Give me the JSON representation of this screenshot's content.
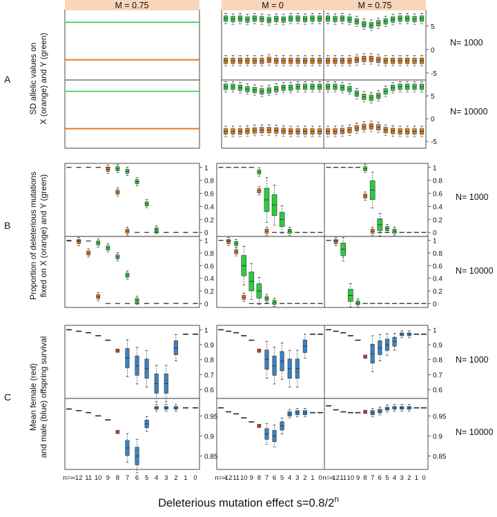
{
  "figure": {
    "x_axis_title": "Deleterious mutation effect s=0.8/2",
    "x_axis_title_sup": "n",
    "x_tick_labels": [
      "n=∞",
      "12",
      "11",
      "10",
      "9",
      "8",
      "7",
      "6",
      "5",
      "4",
      "3",
      "2",
      "1",
      "0"
    ]
  },
  "columns": {
    "left": "M = 0.75",
    "middle": "M = 0",
    "right": "M = 0.75"
  },
  "rows": [
    {
      "letter": "A",
      "ylabel_line1": "SD allelic values on",
      "ylabel_line2": "X (orange) and Y (green)"
    },
    {
      "letter": "B",
      "ylabel_line1": "Proportion of deleterious mutations",
      "ylabel_line2": "fixed on X (orange) and Y (green)"
    },
    {
      "letter": "C",
      "ylabel_line1": "Mean female (red)",
      "ylabel_line2": "and male (blue) offspring survival"
    }
  ],
  "n_labels": {
    "top": "N= 1000",
    "bottom": "N= 10000"
  },
  "colors": {
    "orange": "#e07b1a",
    "green": "#2ecc40",
    "red": "#c0392b",
    "blue": "#3b82c4",
    "strip": "#f9d5b9"
  },
  "chart_data": [
    {
      "type": "box",
      "panel": "A",
      "ylabel": "SD allelic values on X (orange) and Y (green)",
      "yticks_top": [
        5,
        0,
        -5
      ],
      "yticks_bottom": [
        5,
        0,
        -5
      ],
      "left_lines": {
        "N1000": {
          "green": 5.8,
          "orange": -2.2
        },
        "N10000": {
          "green": 6.0,
          "orange": -2.2
        }
      },
      "series": [
        {
          "name": "Y (green)",
          "col": "M = 0",
          "N": 1000,
          "values": [
            6.6,
            6.5,
            6.6,
            6.4,
            6.6,
            6.5,
            6.3,
            6.5,
            6.4,
            6.6,
            6.6,
            6.5,
            6.6,
            6.6
          ]
        },
        {
          "name": "X (orange)",
          "col": "M = 0",
          "N": 1000,
          "values": [
            -2.4,
            -2.4,
            -2.4,
            -2.4,
            -2.4,
            -2.4,
            -2.2,
            -2.4,
            -2.4,
            -2.4,
            -2.4,
            -2.4,
            -2.4,
            -2.4
          ]
        },
        {
          "name": "Y (green)",
          "col": "M = 0.75",
          "N": 1000,
          "values": [
            6.6,
            6.5,
            6.6,
            6.4,
            6.0,
            5.4,
            5.2,
            5.6,
            6.0,
            6.4,
            6.6,
            6.6,
            6.5,
            6.6
          ]
        },
        {
          "name": "X (orange)",
          "col": "M = 0.75",
          "N": 1000,
          "values": [
            -2.4,
            -2.4,
            -2.4,
            -2.4,
            -2.2,
            -2.0,
            -2.0,
            -2.2,
            -2.4,
            -2.4,
            -2.4,
            -2.4,
            -2.4,
            -2.4
          ]
        },
        {
          "name": "Y (green)",
          "col": "M = 0",
          "N": 10000,
          "values": [
            7.0,
            7.0,
            6.8,
            6.5,
            6.3,
            6.0,
            6.2,
            6.5,
            6.8,
            6.8,
            7.0,
            7.0,
            7.0,
            7.0
          ]
        },
        {
          "name": "X (orange)",
          "col": "M = 0",
          "N": 10000,
          "values": [
            -2.8,
            -2.8,
            -2.8,
            -2.7,
            -2.6,
            -2.5,
            -2.5,
            -2.6,
            -2.7,
            -2.8,
            -2.8,
            -2.8,
            -2.8,
            -2.8
          ]
        },
        {
          "name": "Y (green)",
          "col": "M = 0.75",
          "N": 10000,
          "values": [
            7.0,
            7.0,
            6.8,
            6.5,
            5.5,
            4.8,
            4.6,
            5.0,
            6.0,
            6.8,
            7.0,
            7.0,
            7.0,
            7.0
          ]
        },
        {
          "name": "X (orange)",
          "col": "M = 0.75",
          "N": 10000,
          "values": [
            -2.8,
            -2.8,
            -2.7,
            -2.5,
            -2.1,
            -1.8,
            -1.7,
            -1.9,
            -2.5,
            -2.7,
            -2.8,
            -2.8,
            -2.8,
            -2.8
          ]
        }
      ]
    },
    {
      "type": "box",
      "panel": "B",
      "ylabel": "Proportion of deleterious mutations fixed on X (orange) and Y (green)",
      "yticks": [
        1.0,
        0.8,
        0.6,
        0.4,
        0.2,
        0.0
      ],
      "series": [
        {
          "name": "X (orange)",
          "col": "left M = 0.75",
          "N": 1000,
          "values": [
            1.0,
            1.0,
            1.0,
            1.0,
            0.97,
            0.62,
            0.02,
            0.0,
            0.0,
            0.0,
            0.0,
            0.0,
            0.0,
            0.0
          ]
        },
        {
          "name": "Y (green)",
          "col": "left M = 0.75",
          "N": 1000,
          "values": [
            1.0,
            1.0,
            1.0,
            1.0,
            1.0,
            0.98,
            0.94,
            0.78,
            0.44,
            0.04,
            0.0,
            0.0,
            0.0,
            0.0
          ]
        },
        {
          "name": "X (orange)",
          "col": "left M = 0.75",
          "N": 10000,
          "values": [
            0.99,
            0.98,
            0.8,
            0.11,
            0.0,
            0.0,
            0.0,
            0.0,
            0.0,
            0.0,
            0.0,
            0.0,
            0.0,
            0.0
          ]
        },
        {
          "name": "Y (green)",
          "col": "left M = 0.75",
          "N": 10000,
          "values": [
            1.0,
            1.0,
            0.99,
            0.96,
            0.88,
            0.74,
            0.45,
            0.05,
            0.0,
            0.0,
            0.0,
            0.0,
            0.0,
            0.0
          ]
        },
        {
          "name": "X (orange)",
          "col": "M = 0",
          "N": 1000,
          "values": [
            1.0,
            1.0,
            1.0,
            1.0,
            1.0,
            0.64,
            0.02,
            0.0,
            0.0,
            0.0,
            0.0,
            0.0,
            0.0,
            0.0
          ]
        },
        {
          "name": "Y (green)",
          "col": "M = 0",
          "N": 1000,
          "values": [
            1.0,
            1.0,
            1.0,
            1.0,
            1.0,
            0.93,
            0.5,
            0.42,
            0.2,
            0.02,
            0.0,
            0.0,
            0.0,
            0.0
          ]
        },
        {
          "name": "X (orange)",
          "col": "M = 0",
          "N": 10000,
          "values": [
            1.0,
            0.98,
            0.82,
            0.1,
            0.0,
            0.0,
            0.0,
            0.0,
            0.0,
            0.0,
            0.0,
            0.0,
            0.0,
            0.0
          ]
        },
        {
          "name": "Y (green)",
          "col": "M = 0",
          "N": 10000,
          "values": [
            1.0,
            1.0,
            0.95,
            0.6,
            0.35,
            0.2,
            0.08,
            0.02,
            0.0,
            0.0,
            0.0,
            0.0,
            0.0,
            0.0
          ]
        },
        {
          "name": "X (orange)",
          "col": "M = 0.75",
          "N": 1000,
          "values": [
            1.0,
            1.0,
            1.0,
            1.0,
            1.0,
            0.56,
            0.02,
            0.0,
            0.0,
            0.0,
            0.0,
            0.0,
            0.0,
            0.0
          ]
        },
        {
          "name": "Y (green)",
          "col": "M = 0.75",
          "N": 1000,
          "values": [
            1.0,
            1.0,
            1.0,
            1.0,
            1.0,
            0.98,
            0.65,
            0.12,
            0.06,
            0.02,
            0.0,
            0.0,
            0.0,
            0.0
          ]
        },
        {
          "name": "X (orange)",
          "col": "M = 0.75",
          "N": 10000,
          "values": [
            1.0,
            0.98,
            0.8,
            0.1,
            0.0,
            0.0,
            0.0,
            0.0,
            0.0,
            0.0,
            0.0,
            0.0,
            0.0,
            0.0
          ]
        },
        {
          "name": "Y (green)",
          "col": "M = 0.75",
          "N": 10000,
          "values": [
            1.0,
            1.0,
            0.86,
            0.13,
            0.01,
            0.0,
            0.0,
            0.0,
            0.0,
            0.0,
            0.0,
            0.0,
            0.0,
            0.0
          ]
        }
      ]
    },
    {
      "type": "box",
      "panel": "C",
      "ylabel": "Mean female (red) and male (blue) offspring survival",
      "yticks_top": [
        1.0,
        0.9,
        0.8,
        0.7,
        0.6
      ],
      "yticks_bottom": [
        0.95,
        0.9,
        0.85
      ],
      "series": [
        {
          "name": "female (red)",
          "col": "left M = 0.75",
          "N": 1000,
          "values": [
            1.0,
            0.99,
            0.98,
            0.96,
            0.93,
            0.86,
            0.81,
            0.76,
            0.74,
            0.64,
            0.64,
            0.88,
            0.97,
            0.97
          ]
        },
        {
          "name": "male (blue)",
          "col": "left M = 0.75",
          "N": 1000,
          "values": [
            1.0,
            0.99,
            0.98,
            0.96,
            0.93,
            0.86,
            0.81,
            0.76,
            0.74,
            0.64,
            0.64,
            0.88,
            0.97,
            0.97
          ]
        },
        {
          "name": "female (red)",
          "col": "left M = 0.75",
          "N": 10000,
          "values": [
            0.967,
            0.963,
            0.958,
            0.95,
            0.94,
            0.91,
            0.87,
            0.85,
            0.93,
            0.97,
            0.97,
            0.97,
            0.97,
            0.97
          ]
        },
        {
          "name": "male (blue)",
          "col": "left M = 0.75",
          "N": 10000,
          "values": [
            0.967,
            0.963,
            0.958,
            0.95,
            0.94,
            0.91,
            0.87,
            0.85,
            0.93,
            0.97,
            0.97,
            0.97,
            0.97,
            0.97
          ]
        },
        {
          "name": "female (red)",
          "col": "M = 0",
          "N": 1000,
          "values": [
            1.0,
            0.99,
            0.98,
            0.96,
            0.93,
            0.86,
            0.8,
            0.76,
            0.79,
            0.74,
            0.74,
            0.89,
            0.97,
            0.97
          ]
        },
        {
          "name": "male (blue)",
          "col": "M = 0",
          "N": 1000,
          "values": [
            1.0,
            0.99,
            0.98,
            0.96,
            0.93,
            0.86,
            0.8,
            0.76,
            0.79,
            0.74,
            0.74,
            0.89,
            0.97,
            0.97
          ]
        },
        {
          "name": "female (red)",
          "col": "M = 0",
          "N": 10000,
          "values": [
            0.97,
            0.96,
            0.955,
            0.945,
            0.935,
            0.925,
            0.905,
            0.9,
            0.925,
            0.955,
            0.958,
            0.958,
            0.958,
            0.958
          ]
        },
        {
          "name": "male (blue)",
          "col": "M = 0",
          "N": 10000,
          "values": [
            0.97,
            0.96,
            0.955,
            0.945,
            0.935,
            0.925,
            0.905,
            0.9,
            0.925,
            0.955,
            0.958,
            0.958,
            0.958,
            0.958
          ]
        },
        {
          "name": "female (red)",
          "col": "M = 0.75",
          "N": 1000,
          "values": [
            1.0,
            0.99,
            0.98,
            0.96,
            0.93,
            0.82,
            0.84,
            0.88,
            0.9,
            0.92,
            0.97,
            0.97,
            0.97,
            0.97
          ]
        },
        {
          "name": "male (blue)",
          "col": "M = 0.75",
          "N": 1000,
          "values": [
            1.0,
            0.99,
            0.98,
            0.96,
            0.93,
            0.82,
            0.84,
            0.88,
            0.9,
            0.92,
            0.97,
            0.97,
            0.97,
            0.97
          ]
        },
        {
          "name": "female (red)",
          "col": "M = 0.75",
          "N": 10000,
          "values": [
            0.975,
            0.965,
            0.96,
            0.958,
            0.958,
            0.96,
            0.958,
            0.962,
            0.968,
            0.97,
            0.97,
            0.97,
            0.97,
            0.97
          ]
        },
        {
          "name": "male (blue)",
          "col": "M = 0.75",
          "N": 10000,
          "values": [
            0.975,
            0.965,
            0.96,
            0.958,
            0.958,
            0.96,
            0.958,
            0.962,
            0.968,
            0.97,
            0.97,
            0.97,
            0.97,
            0.97
          ]
        }
      ]
    }
  ]
}
